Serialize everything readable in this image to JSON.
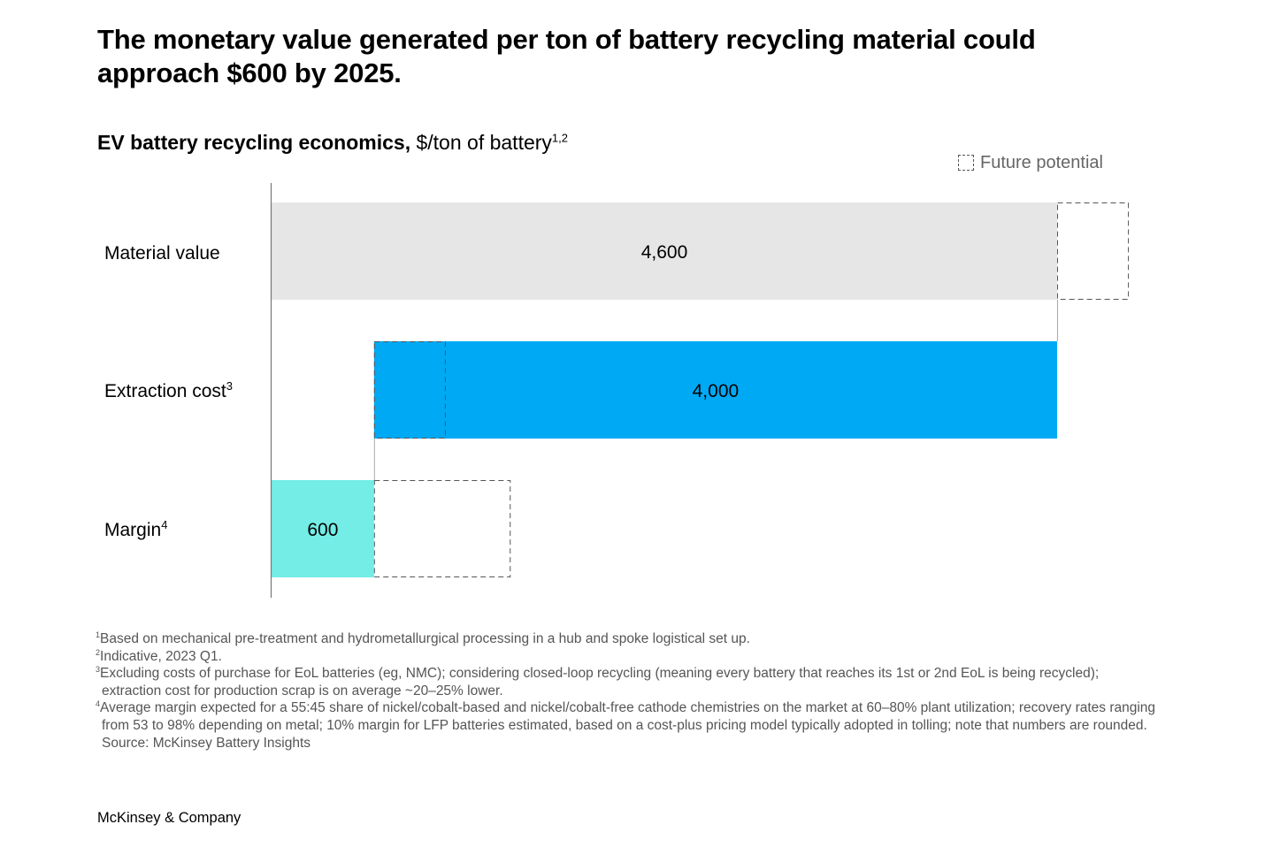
{
  "headline": "The monetary value generated per ton of battery recycling material could approach $600 by 2025.",
  "chart_data": {
    "type": "bar",
    "title": "EV battery recycling economics,",
    "unit": "$/ton of battery",
    "unit_footnote_refs": "1,2",
    "legend": {
      "label": "Future potential",
      "placement": "top-right"
    },
    "categories": [
      {
        "label": "Material value",
        "footnote_ref": ""
      },
      {
        "label": "Extraction cost",
        "footnote_ref": "3"
      },
      {
        "label": "Margin",
        "footnote_ref": "4"
      }
    ],
    "values": [
      4600,
      4000,
      600
    ],
    "value_labels": [
      "4,600",
      "4,000",
      "600"
    ],
    "bars": [
      {
        "start": 0,
        "end": 4600,
        "color": "#e6e6e6",
        "future_potential": [
          4600,
          5020
        ]
      },
      {
        "start": 600,
        "end": 4600,
        "color": "#00a9f4",
        "future_potential": [
          600,
          1020
        ]
      },
      {
        "start": 0,
        "end": 600,
        "color": "#73ede6",
        "future_potential": [
          600,
          1400
        ]
      }
    ]
  },
  "footnotes": [
    {
      "ref": "1",
      "text": "Based on mechanical pre-treatment and hydrometallurgical processing in a hub and spoke logistical set up."
    },
    {
      "ref": "2",
      "text": "Indicative, 2023 Q1."
    },
    {
      "ref": "3",
      "text": "Excluding costs of purchase for EoL batteries (eg, NMC); considering closed-loop recycling (meaning every battery that reaches its 1st or 2nd EoL is being recycled); extraction cost for production scrap is on average ~20–25% lower."
    },
    {
      "ref": "4",
      "text": "Average margin expected for a 55:45 share of nickel/cobalt-based and nickel/cobalt-free cathode chemistries on the market at 60–80% plant utilization; recovery rates ranging from 53 to 98% depending on metal; 10% margin for LFP batteries estimated, based on a cost-plus pricing model typically adopted in tolling; note that numbers are rounded."
    }
  ],
  "source": "Source: McKinsey Battery Insights",
  "brand": "McKinsey & Company"
}
